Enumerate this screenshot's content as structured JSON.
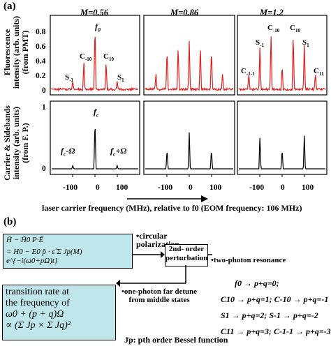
{
  "panel_a": {
    "label": "(a)",
    "titles": [
      "M=0.56",
      "M=0.86",
      "M=1.2"
    ],
    "ylabel_top": [
      "Fluorescence",
      "intensity (arb. units)",
      "(from PMT)"
    ],
    "ylabel_bottom": [
      "Carrier & Sidebands",
      "intensity (arb. units)",
      "(from F. P.)"
    ],
    "yticks_top": [
      "0.8",
      "0.6",
      "0.4",
      "0.2",
      "0"
    ],
    "yticks_bottom": [
      "1",
      "0"
    ],
    "xticks": [
      "-100",
      "0",
      "100"
    ],
    "xlabel": "laser carrier frequency (MHz), relative to f0  (EOM frequency: 106 MHz)",
    "peak_labels_p1": [
      "f0",
      "C-10",
      "C10",
      "S-1",
      "S1"
    ],
    "peak_labels_p3": [
      "C-10",
      "C10",
      "S-1",
      "S1",
      "C-1-1",
      "C11"
    ],
    "carrier_labels": [
      "fc",
      "fc-Ω",
      "fc+Ω"
    ]
  },
  "chart_data": [
    {
      "type": "line",
      "title": "M=0.56",
      "x": [
        -212,
        -106,
        -53,
        0,
        53,
        106,
        212
      ],
      "y": [
        0.0,
        0.1,
        0.35,
        0.8,
        0.35,
        0.1,
        0.0
      ],
      "color": "#e02020",
      "ylim": [
        0,
        0.9
      ]
    },
    {
      "type": "line",
      "title": "M=0.86",
      "x": [
        -212,
        -159,
        -106,
        -53,
        0,
        53,
        106,
        159,
        212
      ],
      "y": [
        0.0,
        0.2,
        0.5,
        0.55,
        0.6,
        0.55,
        0.5,
        0.2,
        0.0
      ],
      "color": "#e02020",
      "ylim": [
        0,
        0.9
      ]
    },
    {
      "type": "line",
      "title": "M=1.2",
      "x": [
        -212,
        -159,
        -106,
        -53,
        0,
        53,
        106,
        159,
        212
      ],
      "y": [
        0.05,
        0.2,
        0.55,
        0.7,
        0.3,
        0.7,
        0.55,
        0.2,
        0.05
      ],
      "color": "#e02020",
      "ylim": [
        0,
        0.9
      ]
    },
    {
      "type": "line",
      "title": "",
      "x": [
        -106,
        0,
        106
      ],
      "y": [
        0.05,
        0.75,
        0.05
      ],
      "color": "#000000",
      "ylim": [
        0,
        1
      ]
    },
    {
      "type": "line",
      "title": "",
      "x": [
        -106,
        0,
        106
      ],
      "y": [
        0.3,
        0.55,
        0.3
      ],
      "color": "#000000",
      "ylim": [
        0,
        1
      ]
    },
    {
      "type": "line",
      "title": "",
      "x": [
        -106,
        0,
        106
      ],
      "y": [
        0.5,
        0.3,
        0.5
      ],
      "color": "#000000",
      "ylim": [
        0,
        1
      ]
    }
  ],
  "panel_b": {
    "label": "(b)",
    "eq_line1": "Ĥ − Ĥ0   P·Ê",
    "eq_line2": "= H0 − E0 p̂ · ε̂ Σ Jp(M) e^{−i(ω0+pΩ)t}",
    "circular": "•circular",
    "polarization": "polarization",
    "perturbation_line1": "2nd- order",
    "perturbation_line2": "perturbation",
    "two_photon": "•two-photon resonance",
    "one_photon_1": "•one-photon far detune",
    "one_photon_2": "from middle states",
    "rate_1": "transition rate at",
    "rate_2": "the frequency of",
    "rate_3": "ω0 + (p + q)Ω",
    "rate_4": "∝ (Σ Jp × Σ Jq)²",
    "bessel": "Jp: pth order Bessel function",
    "rules": [
      "f0 → p+q=0;",
      "C10 → p+q=1;  C-10 → p+q=-1",
      "S1 → p+q=2;  S-1 → p+q=-2",
      "C11 → p+q=3;  C-1-1 → p+q=-3"
    ]
  }
}
